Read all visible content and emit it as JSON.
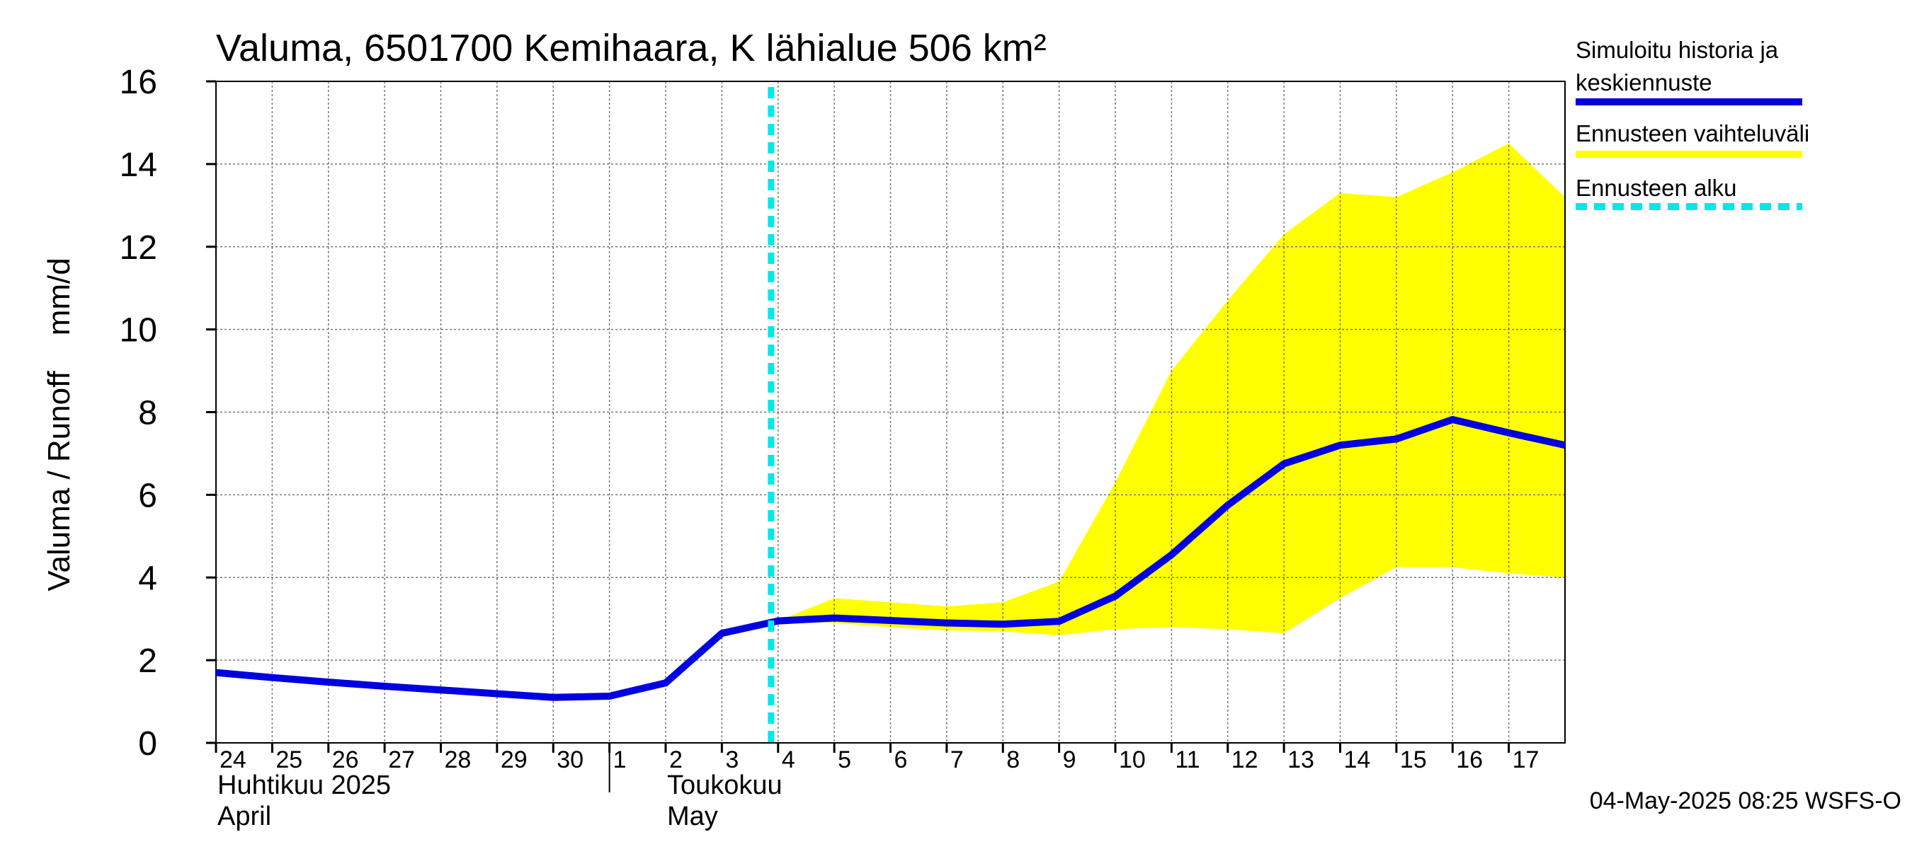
{
  "chart_data": {
    "type": "line",
    "title": "Valuma, 6501700 Kemihaara, K lähialue 506 km²",
    "ylabel": "Valuma / Runoff",
    "yunit": "mm/d",
    "ylim": [
      0,
      16
    ],
    "yticks": [
      "0",
      "2",
      "4",
      "6",
      "8",
      "10",
      "12",
      "14",
      "16"
    ],
    "x_dates": [
      "2025-04-24",
      "2025-04-25",
      "2025-04-26",
      "2025-04-27",
      "2025-04-28",
      "2025-04-29",
      "2025-04-30",
      "2025-05-01",
      "2025-05-02",
      "2025-05-03",
      "2025-05-04",
      "2025-05-05",
      "2025-05-06",
      "2025-05-07",
      "2025-05-08",
      "2025-05-09",
      "2025-05-10",
      "2025-05-11",
      "2025-05-12",
      "2025-05-13",
      "2025-05-14",
      "2025-05-15",
      "2025-05-16",
      "2025-05-17"
    ],
    "xticks": [
      "24",
      "25",
      "26",
      "27",
      "28",
      "29",
      "30",
      "1",
      "2",
      "3",
      "4",
      "5",
      "6",
      "7",
      "8",
      "9",
      "10",
      "11",
      "12",
      "13",
      "14",
      "15",
      "16",
      "17"
    ],
    "xlim": [
      "2025-04-24",
      "2025-05-18"
    ],
    "month_labels": [
      {
        "line1": "Huhtikuu  2025",
        "line2": "April",
        "at": "2025-04-24"
      },
      {
        "line1": "Toukokuu",
        "line2": "May",
        "at": "2025-05-02"
      }
    ],
    "grid": true,
    "series": [
      {
        "name": "Simuloitu historia ja keskiennuste",
        "color": "#0000e0",
        "points": [
          [
            "2025-04-24",
            1.7
          ],
          [
            "2025-04-25",
            1.58
          ],
          [
            "2025-04-26",
            1.47
          ],
          [
            "2025-04-27",
            1.37
          ],
          [
            "2025-04-28",
            1.28
          ],
          [
            "2025-04-29",
            1.19
          ],
          [
            "2025-04-30",
            1.1
          ],
          [
            "2025-05-01",
            1.13
          ],
          [
            "2025-05-02",
            1.45
          ],
          [
            "2025-05-03",
            2.65
          ],
          [
            "2025-05-04",
            2.95
          ],
          [
            "2025-05-05",
            3.02
          ],
          [
            "2025-05-06",
            2.96
          ],
          [
            "2025-05-07",
            2.9
          ],
          [
            "2025-05-08",
            2.87
          ],
          [
            "2025-05-09",
            2.94
          ],
          [
            "2025-05-10",
            3.55
          ],
          [
            "2025-05-11",
            4.55
          ],
          [
            "2025-05-12",
            5.75
          ],
          [
            "2025-05-13",
            6.75
          ],
          [
            "2025-05-14",
            7.2
          ],
          [
            "2025-05-15",
            7.35
          ],
          [
            "2025-05-16",
            7.82
          ],
          [
            "2025-05-17",
            7.5
          ],
          [
            "2025-05-18",
            7.2
          ]
        ]
      }
    ],
    "band": {
      "name": "Ennusteen vaihteluväli",
      "color": "#ffff00",
      "upper": [
        [
          "2025-05-04",
          2.95
        ],
        [
          "2025-05-05",
          3.5
        ],
        [
          "2025-05-06",
          3.4
        ],
        [
          "2025-05-07",
          3.3
        ],
        [
          "2025-05-08",
          3.4
        ],
        [
          "2025-05-09",
          3.9
        ],
        [
          "2025-05-10",
          6.3
        ],
        [
          "2025-05-11",
          9.0
        ],
        [
          "2025-05-12",
          10.7
        ],
        [
          "2025-05-13",
          12.3
        ],
        [
          "2025-05-14",
          13.3
        ],
        [
          "2025-05-15",
          13.2
        ],
        [
          "2025-05-16",
          13.8
        ],
        [
          "2025-05-17",
          14.5
        ],
        [
          "2025-05-18",
          13.2
        ]
      ],
      "lower": [
        [
          "2025-05-04",
          2.95
        ],
        [
          "2025-05-05",
          2.9
        ],
        [
          "2025-05-06",
          2.8
        ],
        [
          "2025-05-07",
          2.72
        ],
        [
          "2025-05-08",
          2.7
        ],
        [
          "2025-05-09",
          2.6
        ],
        [
          "2025-05-10",
          2.75
        ],
        [
          "2025-05-11",
          2.8
        ],
        [
          "2025-05-12",
          2.75
        ],
        [
          "2025-05-13",
          2.65
        ],
        [
          "2025-05-14",
          3.5
        ],
        [
          "2025-05-15",
          4.25
        ],
        [
          "2025-05-16",
          4.25
        ],
        [
          "2025-05-17",
          4.1
        ],
        [
          "2025-05-18",
          4.0
        ]
      ]
    },
    "forecast_start": {
      "name": "Ennusteen alku",
      "color": "#00e8e8",
      "date": "2025-05-03T21:00"
    },
    "legend": {
      "placement": "right",
      "entries": [
        {
          "label_line1": "Simuloitu historia ja",
          "label_line2": "keskiennuste",
          "color": "#0000e0",
          "style": "solid"
        },
        {
          "label_line1": "Ennusteen vaihteluväli",
          "label_line2": "",
          "color": "#ffff00",
          "style": "solid"
        },
        {
          "label_line1": "Ennusteen alku",
          "label_line2": "",
          "color": "#00e8e8",
          "style": "dashed"
        }
      ]
    },
    "timestamp": "04-May-2025 08:25 WSFS-O"
  }
}
